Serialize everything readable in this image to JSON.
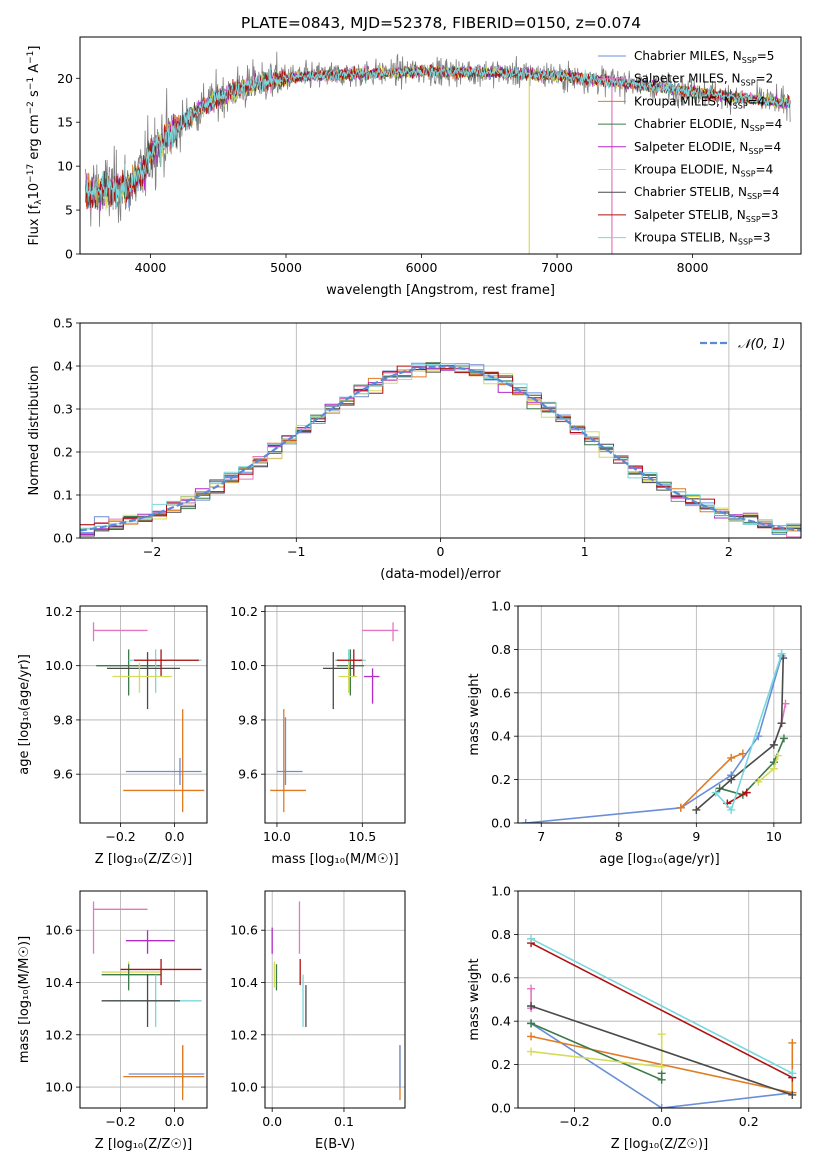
{
  "figure_title": "PLATE=0843, MJD=52378, FIBERID=0150, z=0.074",
  "colors": {
    "Chabrier MILES": "#6a8fd8",
    "Salpeter MILES": "#e377c2",
    "Kroupa MILES": "#e07b22",
    "Chabrier ELODIE": "#3e7a4a",
    "Salpeter ELODIE": "#b02cc6",
    "Kroupa ELODIE": "#d6dc5a",
    "Chabrier STELIB": "#4a4a4a",
    "Salpeter STELIB": "#b01010",
    "Kroupa STELIB": "#7ad8dc",
    "normal": "#5a8ad6",
    "grid": "#b0b0b0"
  },
  "chart_data": [
    {
      "id": "spectrum",
      "type": "line",
      "title": "",
      "xlabel": "wavelength [Angstrom, rest frame]",
      "ylabel": "Flux [f_λ 10^-17 erg cm^-2 s^-1 A^-1]",
      "xlim": [
        3480,
        8800
      ],
      "ylim": [
        0,
        24.7
      ],
      "grid": false,
      "xticks": [
        "4000",
        "5000",
        "6000",
        "7000",
        "8000"
      ],
      "yticks": [
        "0",
        "5",
        "10",
        "15",
        "20"
      ],
      "legend_position": "right",
      "legend": [
        {
          "name": "Chabrier MILES",
          "nssp": "5"
        },
        {
          "name": "Salpeter MILES",
          "nssp": "2"
        },
        {
          "name": "Kroupa MILES",
          "nssp": "4"
        },
        {
          "name": "Chabrier ELODIE",
          "nssp": "4"
        },
        {
          "name": "Salpeter ELODIE",
          "nssp": "4"
        },
        {
          "name": "Kroupa ELODIE",
          "nssp": "4"
        },
        {
          "name": "Chabrier STELIB",
          "nssp": "4"
        },
        {
          "name": "Salpeter STELIB",
          "nssp": "3"
        },
        {
          "name": "Kroupa STELIB",
          "nssp": "3"
        }
      ],
      "continuum": {
        "x": [
          3520,
          3700,
          3850,
          3950,
          4000,
          4100,
          4200,
          4400,
          4600,
          4800,
          5000,
          5200,
          5500,
          6000,
          6500,
          7000,
          7500,
          8000,
          8500,
          8800
        ],
        "y": [
          7.0,
          7.3,
          7.8,
          9.5,
          11.5,
          13.0,
          14.5,
          17.0,
          18.5,
          19.5,
          20.0,
          20.3,
          20.5,
          20.8,
          20.7,
          20.3,
          19.5,
          18.5,
          17.5,
          17.0
        ]
      },
      "spikes": [
        {
          "x": 6795,
          "ymin": 0.0,
          "color": "Kroupa ELODIE"
        },
        {
          "x": 7405,
          "ymin": 0.0,
          "color": "Salpeter MILES"
        }
      ]
    },
    {
      "id": "residuals",
      "type": "histogram",
      "title": "",
      "xlabel": "(data-model)/error",
      "ylabel": "Normed distribution",
      "xlim": [
        -2.5,
        2.5
      ],
      "ylim": [
        0,
        0.5
      ],
      "grid": true,
      "xticks": [
        "−2",
        "−1",
        "0",
        "1",
        "2"
      ],
      "yticks": [
        "0.0",
        "0.1",
        "0.2",
        "0.3",
        "0.4",
        "0.5"
      ],
      "bin_width": 0.1,
      "series_curve_label": "𝒩(0, 1)",
      "legend_position": "top-right"
    },
    {
      "id": "age_vs_Z",
      "type": "errorbar",
      "title": "",
      "xlabel": "Z [log₁₀(Z/Z☉)]",
      "ylabel": "age  [log₁₀(age/yr)]",
      "xlim": [
        -0.35,
        0.12
      ],
      "ylim": [
        9.42,
        10.22
      ],
      "grid": true,
      "xticks": [
        "−0.2",
        "0.0"
      ],
      "yticks": [
        "9.6",
        "9.8",
        "10.0",
        "10.2"
      ],
      "points": [
        {
          "series": "Salpeter MILES",
          "x": -0.3,
          "y": 10.13,
          "xerr": [
            0.0,
            0.2
          ],
          "yerr": [
            0.04,
            0.03
          ]
        },
        {
          "series": "Chabrier ELODIE",
          "x": -0.17,
          "y": 10.0,
          "xerr": [
            0.12,
            0.12
          ],
          "yerr": [
            0.11,
            0.06
          ]
        },
        {
          "series": "Kroupa STELIB",
          "x": -0.07,
          "y": 10.02,
          "xerr": [
            0.1,
            0.17
          ],
          "yerr": [
            0.12,
            0.04
          ]
        },
        {
          "series": "Chabrier STELIB",
          "x": -0.1,
          "y": 9.99,
          "xerr": [
            0.15,
            0.12
          ],
          "yerr": [
            0.15,
            0.06
          ]
        },
        {
          "series": "Salpeter STELIB",
          "x": -0.05,
          "y": 10.02,
          "xerr": [
            0.1,
            0.14
          ],
          "yerr": [
            0.06,
            0.04
          ]
        },
        {
          "series": "Kroupa ELODIE",
          "x": -0.13,
          "y": 9.96,
          "xerr": [
            0.1,
            0.12
          ],
          "yerr": [
            0.06,
            0.05
          ]
        },
        {
          "series": "Chabrier MILES",
          "x": 0.02,
          "y": 9.61,
          "xerr": [
            0.2,
            0.08
          ],
          "yerr": [
            0.05,
            0.05
          ]
        },
        {
          "series": "Kroupa MILES",
          "x": 0.03,
          "y": 9.54,
          "xerr": [
            0.22,
            0.08
          ],
          "yerr": [
            0.08,
            0.3
          ]
        }
      ]
    },
    {
      "id": "age_vs_mass",
      "type": "errorbar",
      "title": "",
      "xlabel": "mass [log₁₀(M/M☉)]",
      "ylabel": "",
      "xlim": [
        9.93,
        10.75
      ],
      "ylim": [
        9.42,
        10.22
      ],
      "grid": true,
      "xticks": [
        "10.0",
        "10.5"
      ],
      "yticks": [
        "9.6",
        "9.8",
        "10.0",
        "10.2"
      ],
      "points": [
        {
          "series": "Salpeter MILES",
          "x": 10.68,
          "y": 10.13,
          "xerr": [
            0.18,
            0.03
          ],
          "yerr": [
            0.04,
            0.03
          ]
        },
        {
          "series": "Salpeter ELODIE",
          "x": 10.56,
          "y": 9.96,
          "xerr": [
            0.05,
            0.04
          ],
          "yerr": [
            0.1,
            0.03
          ]
        },
        {
          "series": "Chabrier ELODIE",
          "x": 10.43,
          "y": 10.0,
          "xerr": [
            0.08,
            0.08
          ],
          "yerr": [
            0.11,
            0.06
          ]
        },
        {
          "series": "Kroupa STELIB",
          "x": 10.42,
          "y": 10.02,
          "xerr": [
            0.08,
            0.1
          ],
          "yerr": [
            0.12,
            0.04
          ]
        },
        {
          "series": "Chabrier STELIB",
          "x": 10.33,
          "y": 9.99,
          "xerr": [
            0.06,
            0.12
          ],
          "yerr": [
            0.15,
            0.06
          ]
        },
        {
          "series": "Salpeter STELIB",
          "x": 10.45,
          "y": 10.02,
          "xerr": [
            0.1,
            0.05
          ],
          "yerr": [
            0.06,
            0.04
          ]
        },
        {
          "series": "Kroupa ELODIE",
          "x": 10.42,
          "y": 9.96,
          "xerr": [
            0.06,
            0.05
          ],
          "yerr": [
            0.06,
            0.05
          ]
        },
        {
          "series": "Chabrier MILES",
          "x": 10.05,
          "y": 9.61,
          "xerr": [
            0.05,
            0.1
          ],
          "yerr": [
            0.05,
            0.2
          ]
        },
        {
          "series": "Kroupa MILES",
          "x": 10.04,
          "y": 9.54,
          "xerr": [
            0.08,
            0.13
          ],
          "yerr": [
            0.08,
            0.3
          ]
        }
      ]
    },
    {
      "id": "weight_vs_age",
      "type": "line",
      "title": "",
      "xlabel": "age  [log₁₀(age/yr)]",
      "ylabel": "mass weight",
      "xlim": [
        6.7,
        10.35
      ],
      "ylim": [
        0,
        1.0
      ],
      "grid": true,
      "xticks": [
        "7",
        "8",
        "9",
        "10"
      ],
      "yticks": [
        "0.0",
        "0.2",
        "0.4",
        "0.6",
        "0.8",
        "1.0"
      ],
      "series": [
        {
          "name": "Chabrier MILES",
          "x": [
            6.8,
            8.8,
            9.45,
            9.8,
            10.1
          ],
          "y": [
            0.0,
            0.07,
            0.22,
            0.4,
            0.77
          ]
        },
        {
          "name": "Salpeter MILES",
          "x": [
            10.1,
            10.15
          ],
          "y": [
            0.46,
            0.55
          ]
        },
        {
          "name": "Kroupa MILES",
          "x": [
            8.8,
            9.45,
            9.6
          ],
          "y": [
            0.07,
            0.3,
            0.32
          ]
        },
        {
          "name": "Chabrier ELODIE",
          "x": [
            9.3,
            9.6,
            10.0,
            10.13
          ],
          "y": [
            0.16,
            0.13,
            0.28,
            0.39
          ]
        },
        {
          "name": "Kroupa ELODIE",
          "x": [
            9.8,
            10.0,
            10.05
          ],
          "y": [
            0.19,
            0.25,
            0.31
          ]
        },
        {
          "name": "Chabrier STELIB",
          "x": [
            9.0,
            9.45,
            10.0,
            10.1,
            10.12
          ],
          "y": [
            0.06,
            0.2,
            0.36,
            0.46,
            0.76
          ]
        },
        {
          "name": "Salpeter STELIB",
          "x": [
            9.4,
            9.65
          ],
          "y": [
            0.09,
            0.14
          ]
        },
        {
          "name": "Kroupa STELIB",
          "x": [
            9.25,
            9.45,
            10.1
          ],
          "y": [
            0.14,
            0.06,
            0.78
          ]
        }
      ]
    },
    {
      "id": "mass_vs_Z",
      "type": "errorbar",
      "title": "",
      "xlabel": "Z [log₁₀(Z/Z☉)]",
      "ylabel": "mass [log₁₀(M/M☉)]",
      "xlim": [
        -0.35,
        0.12
      ],
      "ylim": [
        9.92,
        10.75
      ],
      "grid": true,
      "xticks": [
        "−0.2",
        "0.0"
      ],
      "yticks": [
        "10.0",
        "10.2",
        "10.4",
        "10.6"
      ],
      "points": [
        {
          "series": "Salpeter MILES",
          "x": -0.3,
          "y": 10.68,
          "xerr": [
            0.0,
            0.2
          ],
          "yerr": [
            0.17,
            0.03
          ]
        },
        {
          "series": "Salpeter ELODIE",
          "x": -0.1,
          "y": 10.56,
          "xerr": [
            0.08,
            0.1
          ],
          "yerr": [
            0.05,
            0.04
          ]
        },
        {
          "series": "Kroupa ELODIE",
          "x": -0.17,
          "y": 10.44,
          "xerr": [
            0.1,
            0.12
          ],
          "yerr": [
            0.06,
            0.04
          ]
        },
        {
          "series": "Chabrier ELODIE",
          "x": -0.17,
          "y": 10.43,
          "xerr": [
            0.1,
            0.12
          ],
          "yerr": [
            0.06,
            0.04
          ]
        },
        {
          "series": "Salpeter STELIB",
          "x": -0.05,
          "y": 10.45,
          "xerr": [
            0.15,
            0.15
          ],
          "yerr": [
            0.06,
            0.04
          ]
        },
        {
          "series": "Kroupa STELIB",
          "x": -0.07,
          "y": 10.33,
          "xerr": [
            0.17,
            0.17
          ],
          "yerr": [
            0.1,
            0.1
          ]
        },
        {
          "series": "Chabrier STELIB",
          "x": -0.1,
          "y": 10.33,
          "xerr": [
            0.17,
            0.12
          ],
          "yerr": [
            0.1,
            0.1
          ]
        },
        {
          "series": "Chabrier MILES",
          "x": 0.03,
          "y": 10.05,
          "xerr": [
            0.2,
            0.08
          ],
          "yerr": [
            0.05,
            0.11
          ]
        },
        {
          "series": "Kroupa MILES",
          "x": 0.03,
          "y": 10.04,
          "xerr": [
            0.22,
            0.08
          ],
          "yerr": [
            0.09,
            0.12
          ]
        }
      ]
    },
    {
      "id": "mass_vs_ebv",
      "type": "errorbar",
      "title": "",
      "xlabel": "E(B-V)",
      "ylabel": "",
      "xlim": [
        -0.01,
        0.185
      ],
      "ylim": [
        9.92,
        10.75
      ],
      "grid": true,
      "xticks": [
        "0.0",
        "0.1"
      ],
      "yticks": [
        "10.0",
        "10.2",
        "10.4",
        "10.6"
      ],
      "points": [
        {
          "series": "Salpeter ELODIE",
          "x": 0.0,
          "y": 10.56,
          "xerr": [
            0,
            0
          ],
          "yerr": [
            0.05,
            0.05
          ]
        },
        {
          "series": "Kroupa ELODIE",
          "x": 0.003,
          "y": 10.44,
          "xerr": [
            0,
            0
          ],
          "yerr": [
            0.06,
            0.04
          ]
        },
        {
          "series": "Chabrier ELODIE",
          "x": 0.006,
          "y": 10.43,
          "xerr": [
            0,
            0
          ],
          "yerr": [
            0.06,
            0.04
          ]
        },
        {
          "series": "Salpeter MILES",
          "x": 0.038,
          "y": 10.68,
          "xerr": [
            0,
            0
          ],
          "yerr": [
            0.17,
            0.03
          ]
        },
        {
          "series": "Salpeter STELIB",
          "x": 0.039,
          "y": 10.45,
          "xerr": [
            0,
            0
          ],
          "yerr": [
            0.06,
            0.04
          ]
        },
        {
          "series": "Kroupa STELIB",
          "x": 0.043,
          "y": 10.33,
          "xerr": [
            0,
            0
          ],
          "yerr": [
            0.1,
            0.1
          ]
        },
        {
          "series": "Chabrier STELIB",
          "x": 0.047,
          "y": 10.33,
          "xerr": [
            0,
            0
          ],
          "yerr": [
            0.1,
            0.06
          ]
        },
        {
          "series": "Kroupa MILES",
          "x": 0.178,
          "y": 10.04,
          "xerr": [
            0,
            0
          ],
          "yerr": [
            0.09,
            0.12
          ]
        },
        {
          "series": "Chabrier MILES",
          "x": 0.178,
          "y": 10.05,
          "xerr": [
            0,
            0
          ],
          "yerr": [
            0.05,
            0.11
          ]
        }
      ]
    },
    {
      "id": "weight_vs_Z",
      "type": "line",
      "title": "",
      "xlabel": "Z [log₁₀(Z/Z☉)]",
      "ylabel": "mass weight",
      "xlim": [
        -0.33,
        0.32
      ],
      "ylim": [
        0,
        1.0
      ],
      "grid": true,
      "xticks": [
        "−0.2",
        "0.0",
        "0.2"
      ],
      "yticks": [
        "0.0",
        "0.2",
        "0.4",
        "0.6",
        "0.8",
        "1.0"
      ],
      "series": [
        {
          "name": "Chabrier MILES",
          "x": [
            -0.3,
            0.0,
            0.3
          ],
          "y": [
            0.39,
            0.0,
            0.07
          ]
        },
        {
          "name": "Salpeter MILES",
          "x": [
            -0.3,
            -0.3
          ],
          "y": [
            0.46,
            0.55
          ]
        },
        {
          "name": "Kroupa MILES",
          "x": [
            -0.3,
            0.3,
            0.3
          ],
          "y": [
            0.33,
            0.07,
            0.3
          ]
        },
        {
          "name": "Chabrier ELODIE",
          "x": [
            -0.3,
            0.0,
            0.0
          ],
          "y": [
            0.39,
            0.13,
            0.16
          ]
        },
        {
          "name": "Kroupa ELODIE",
          "x": [
            -0.3,
            0.0,
            0.0
          ],
          "y": [
            0.26,
            0.19,
            0.34
          ]
        },
        {
          "name": "Chabrier STELIB",
          "x": [
            -0.3,
            0.3
          ],
          "y": [
            0.47,
            0.06
          ]
        },
        {
          "name": "Salpeter STELIB",
          "x": [
            -0.3,
            0.3
          ],
          "y": [
            0.76,
            0.14
          ]
        },
        {
          "name": "Kroupa STELIB",
          "x": [
            -0.3,
            0.3
          ],
          "y": [
            0.78,
            0.16
          ]
        }
      ]
    }
  ]
}
